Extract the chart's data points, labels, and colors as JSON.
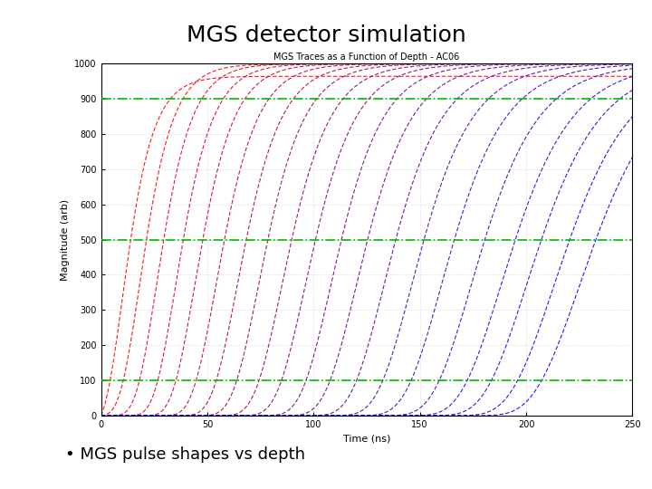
{
  "title": "MGS detector simulation",
  "plot_title": "MGS Traces as a Function of Depth - AC06",
  "xlabel": "Time (ns)",
  "ylabel": "Magnitude (arb)",
  "xlim": [
    0,
    250
  ],
  "ylim": [
    0,
    1000
  ],
  "xticks": [
    0,
    50,
    100,
    150,
    200,
    250
  ],
  "yticks": [
    0,
    100,
    200,
    300,
    400,
    500,
    600,
    700,
    800,
    900,
    1000
  ],
  "n_curves": 20,
  "t_max": 250,
  "amplitude": 1000,
  "green_lines": [
    100,
    500,
    900
  ],
  "bullet_text": "MGS pulse shapes vs depth",
  "background_color": "#ffffff",
  "plot_bg": "#ffffff",
  "grid_color": "#aaaaaa",
  "green_line_color": "#00bb00",
  "title_fontsize": 18,
  "plot_title_fontsize": 7,
  "label_fontsize": 8,
  "tick_fontsize": 7,
  "bullet_fontsize": 13,
  "t_mids": [
    10,
    18,
    26,
    35,
    44,
    54,
    64,
    74,
    85,
    96,
    108,
    120,
    133,
    146,
    160,
    174,
    188,
    200,
    213,
    225
  ],
  "k_vals": [
    0.12,
    0.11,
    0.105,
    0.1,
    0.095,
    0.09,
    0.085,
    0.082,
    0.078,
    0.075,
    0.072,
    0.068,
    0.065,
    0.062,
    0.059,
    0.056,
    0.053,
    0.051,
    0.049,
    0.047
  ]
}
